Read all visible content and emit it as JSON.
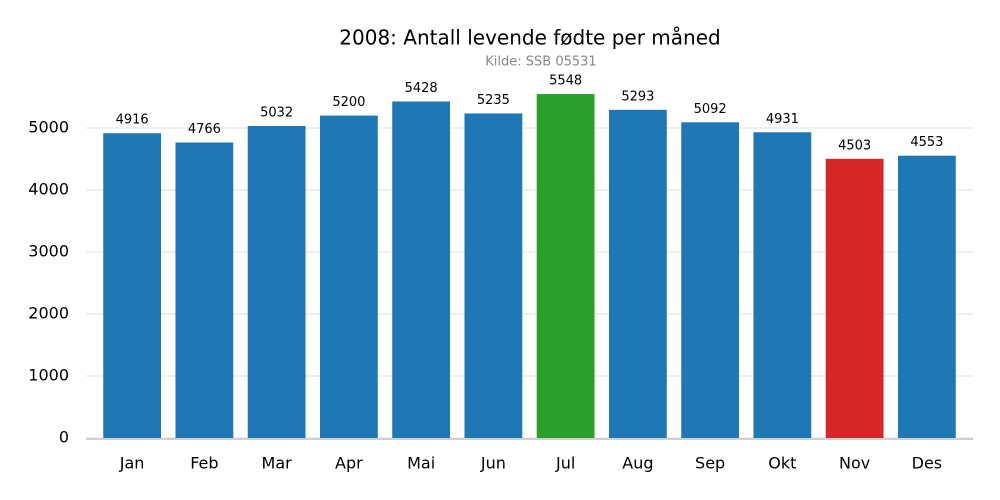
{
  "chart_data": {
    "type": "bar",
    "title": "2008: Antall levende fødte per måned",
    "subtitle": "Kilde: SSB 05531",
    "categories": [
      "Jan",
      "Feb",
      "Mar",
      "Apr",
      "Mai",
      "Jun",
      "Jul",
      "Aug",
      "Sep",
      "Okt",
      "Nov",
      "Des"
    ],
    "values": [
      4916,
      4766,
      5032,
      5200,
      5428,
      5235,
      5548,
      5293,
      5092,
      4931,
      4503,
      4553
    ],
    "colors": [
      "#1f77b4",
      "#1f77b4",
      "#1f77b4",
      "#1f77b4",
      "#1f77b4",
      "#1f77b4",
      "#2ca02c",
      "#1f77b4",
      "#1f77b4",
      "#1f77b4",
      "#d62728",
      "#1f77b4"
    ],
    "ylim": [
      0,
      5800
    ],
    "yticks": [
      0,
      1000,
      2000,
      3000,
      4000,
      5000
    ],
    "grid": true
  }
}
